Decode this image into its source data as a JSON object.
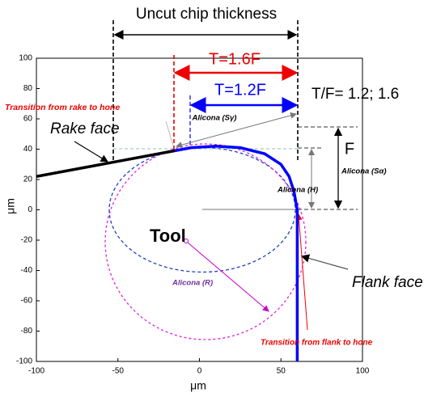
{
  "chart_data": {
    "type": "line",
    "xlabel": "μm",
    "ylabel": "μm",
    "xlim": [
      -100,
      100
    ],
    "ylim": [
      -100,
      100
    ],
    "xticks": [
      -100,
      -50,
      0,
      50,
      100
    ],
    "yticks": [
      -100,
      -80,
      -60,
      -40,
      -20,
      0,
      20,
      40,
      60,
      80,
      100
    ],
    "series": [
      {
        "color": "#000000",
        "x": [
          -100,
          -15
        ],
        "values": [
          22,
          39
        ]
      },
      {
        "color": "#0000ff",
        "x": [
          -15,
          -5,
          10,
          25,
          40,
          50,
          55,
          58,
          60,
          60
        ],
        "values": [
          39,
          41,
          42,
          41,
          37,
          30,
          22,
          12,
          0,
          -100
        ]
      }
    ],
    "annotations": [
      "Uncut chip thickness",
      "T=1.6F",
      "T=1.2F",
      "T/F= 1.2; 1.6",
      "Transition from rake to hone",
      "Alicona (Sγ)",
      "Rake face",
      "F",
      "Alicona (Sα)",
      "Alicona (H)",
      "Tool",
      "Alicona (R)",
      "Flank face",
      "Transition from flank to hone"
    ]
  }
}
